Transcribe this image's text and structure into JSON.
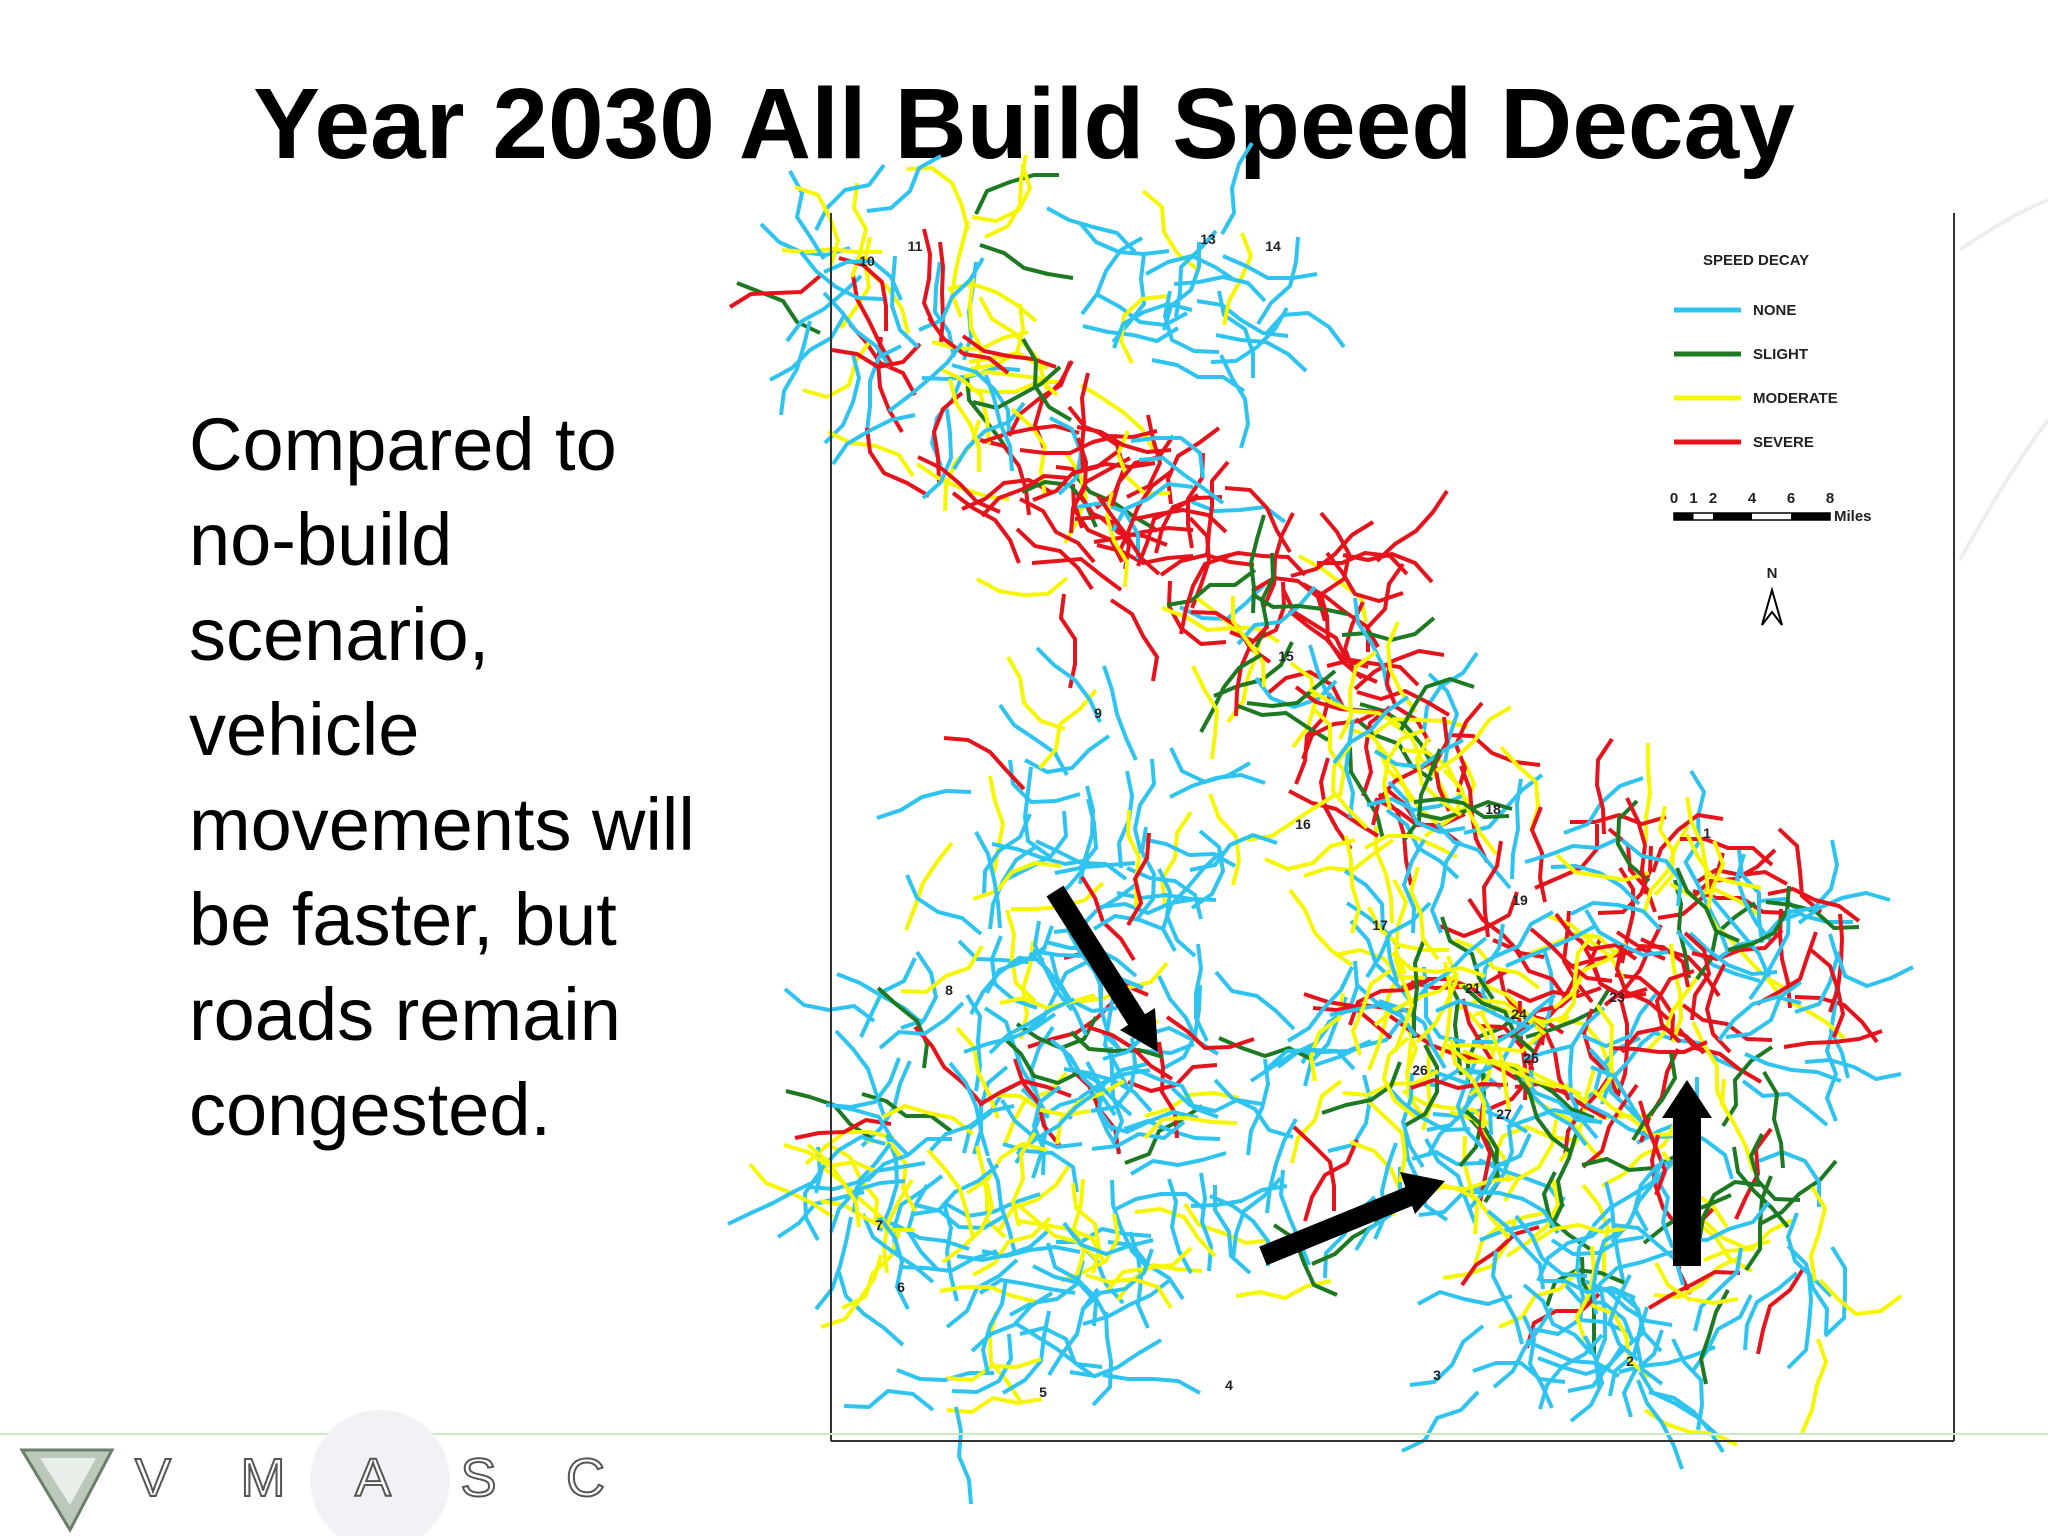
{
  "header": {
    "title": "Year 2030 All Build Speed Decay"
  },
  "body": {
    "lines": [
      "Compared to",
      "no-build",
      "scenario,",
      "vehicle",
      "movements will",
      "be faster, but",
      "roads remain",
      "congested."
    ]
  },
  "map": {
    "legend": {
      "title": "SPEED DECAY",
      "items": [
        {
          "label": "NONE",
          "color": "#2ec4ef"
        },
        {
          "label": "SLIGHT",
          "color": "#1d7a22"
        },
        {
          "label": "MODERATE",
          "color": "#f6f600"
        },
        {
          "label": "SEVERE",
          "color": "#e5141c"
        }
      ]
    },
    "scale": {
      "ticks": [
        0,
        1,
        2,
        4,
        6,
        8
      ],
      "unit": "Miles"
    },
    "north": "N",
    "nodes": [
      "1",
      "2",
      "3",
      "4",
      "5",
      "6",
      "7",
      "8",
      "9",
      "10",
      "11",
      "13",
      "14",
      "15",
      "16",
      "17",
      "18",
      "19",
      "21",
      "23",
      "24",
      "25",
      "26",
      "27"
    ]
  },
  "logo": {
    "text": "VMASC"
  }
}
